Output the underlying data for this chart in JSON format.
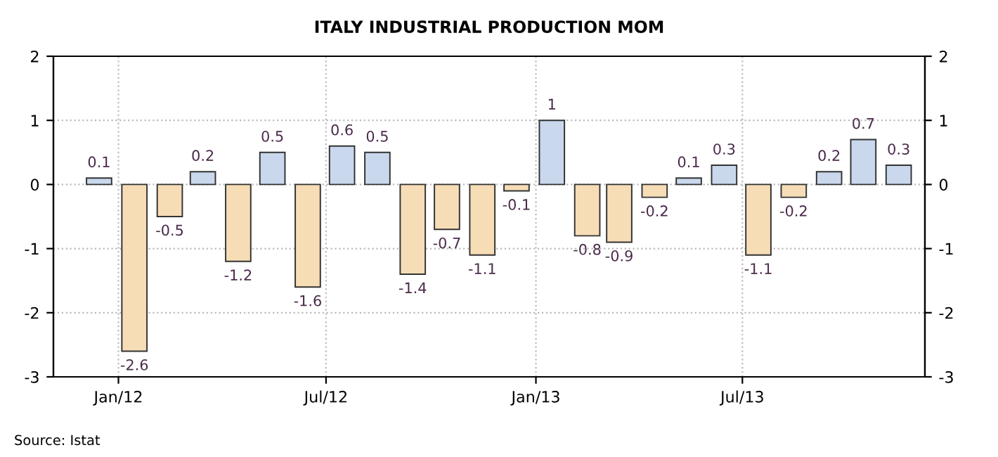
{
  "chart_data": {
    "type": "bar",
    "title": "ITALY INDUSTRIAL PRODUCTION MOM",
    "x": [
      "2011-12-15",
      "2012-01-15",
      "2012-02-15",
      "2012-03-15",
      "2012-04-15",
      "2012-05-15",
      "2012-06-15",
      "2012-07-15",
      "2012-08-15",
      "2012-09-15",
      "2012-10-15",
      "2012-11-15",
      "2012-12-15",
      "2013-01-15",
      "2013-02-15",
      "2013-03-15",
      "2013-04-15",
      "2013-05-15",
      "2013-06-15",
      "2013-07-15",
      "2013-08-15",
      "2013-09-15",
      "2013-10-15",
      "2013-11-15"
    ],
    "values": [
      0.1,
      -2.6,
      -0.5,
      0.2,
      -1.2,
      0.5,
      -1.6,
      0.6,
      0.5,
      -1.4,
      -0.7,
      -1.1,
      -0.1,
      1,
      -0.8,
      -0.9,
      -0.2,
      0.1,
      0.3,
      -1.1,
      -0.2,
      0.2,
      0.7,
      0.3
    ],
    "colors": [
      "#c9d8ec",
      "#f6ddb6",
      "#f6ddb6",
      "#c9d8ec",
      "#f6ddb6",
      "#c9d8ec",
      "#f6ddb6",
      "#c9d8ec",
      "#c9d8ec",
      "#f6ddb6",
      "#f6ddb6",
      "#f6ddb6",
      "#f6ddb6",
      "#c9d8ec",
      "#f6ddb6",
      "#f6ddb6",
      "#f6ddb6",
      "#c9d8ec",
      "#c9d8ec",
      "#f6ddb6",
      "#f6ddb6",
      "#c9d8ec",
      "#c9d8ec",
      "#c9d8ec"
    ],
    "data_labels": true,
    "xlim": [
      "2011-11-05",
      "2013-12-08"
    ],
    "xticks": [
      {
        "value": "2012-01-01",
        "label": "Jan/12"
      },
      {
        "value": "2012-07-01",
        "label": "Jul/12"
      },
      {
        "value": "2013-01-01",
        "label": "Jan/13"
      },
      {
        "value": "2013-07-01",
        "label": "Jul/13"
      }
    ],
    "ylim": [
      -3,
      2
    ],
    "yticks": [
      -3,
      -2,
      -1,
      0,
      1,
      2
    ],
    "y2lim": [
      -3,
      2
    ],
    "y2ticks": [
      -3,
      -2,
      -1,
      0,
      1,
      2
    ],
    "grid": true,
    "annotations": [
      "Source: Istat"
    ]
  }
}
